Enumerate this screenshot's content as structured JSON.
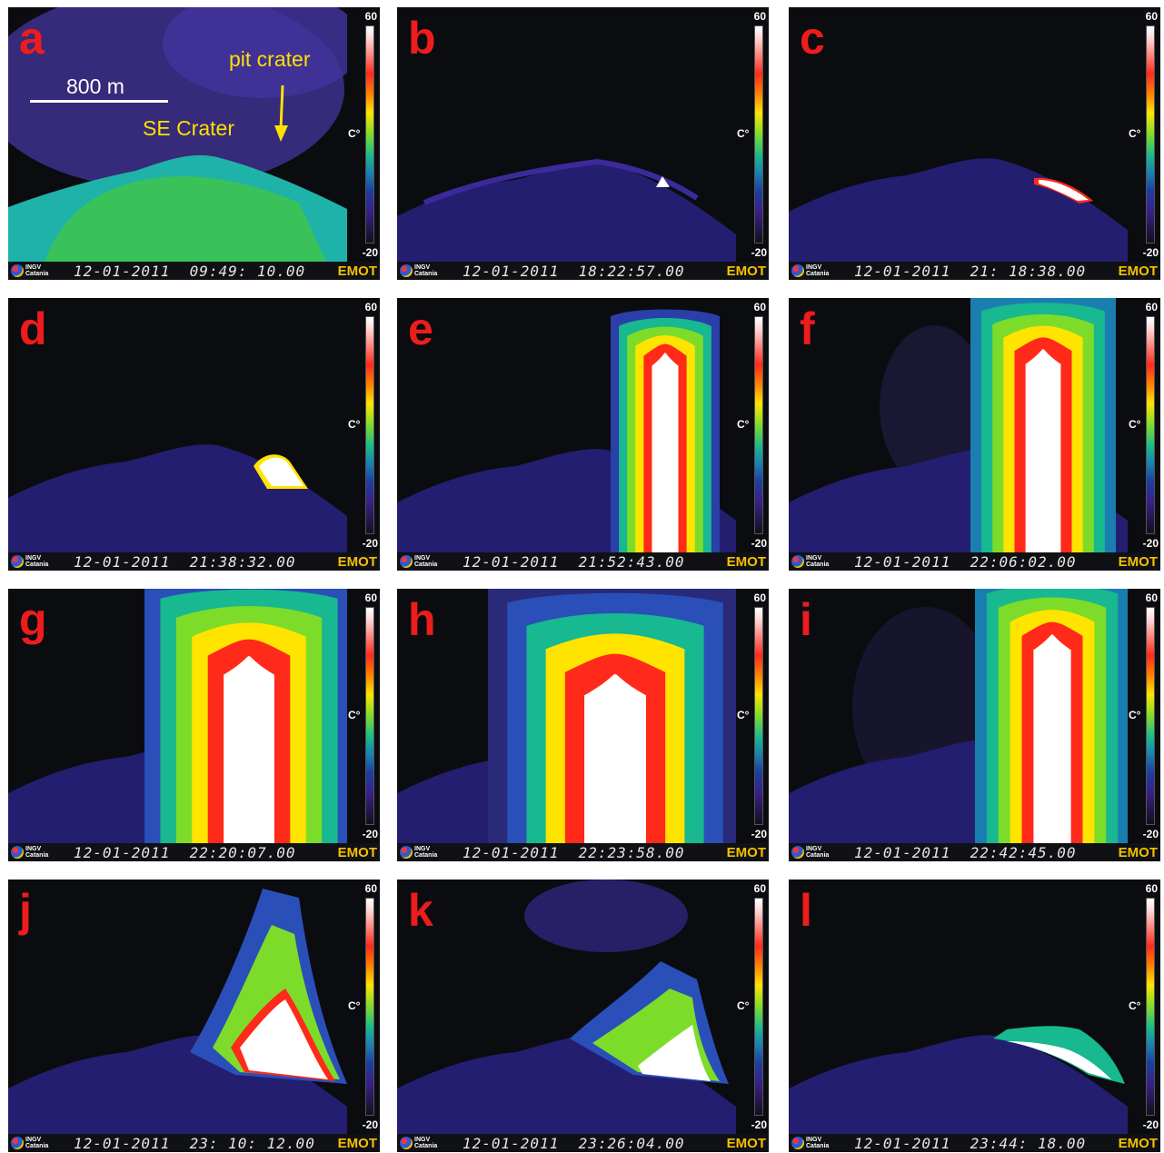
{
  "colorbar": {
    "max": "60",
    "min": "-20",
    "unit": "C°"
  },
  "footer": {
    "org_line1": "INGV",
    "org_line2": "Catania",
    "brand": "EMOT"
  },
  "panels": [
    {
      "letter": "a",
      "timestamp": "12-01-2011  09:49: 10.00"
    },
    {
      "letter": "b",
      "timestamp": "12-01-2011  18:22:57.00"
    },
    {
      "letter": "c",
      "timestamp": "12-01-2011  21: 18:38.00"
    },
    {
      "letter": "d",
      "timestamp": "12-01-2011  21:38:32.00"
    },
    {
      "letter": "e",
      "timestamp": "12-01-2011  21:52:43.00"
    },
    {
      "letter": "f",
      "timestamp": "12-01-2011  22:06:02.00"
    },
    {
      "letter": "g",
      "timestamp": "12-01-2011  22:20:07.00"
    },
    {
      "letter": "h",
      "timestamp": "12-01-2011  22:23:58.00"
    },
    {
      "letter": "i",
      "timestamp": "12-01-2011  22:42:45.00"
    },
    {
      "letter": "j",
      "timestamp": "12-01-2011  23: 10: 12.00"
    },
    {
      "letter": "k",
      "timestamp": "12-01-2011  23:26:04.00"
    },
    {
      "letter": "l",
      "timestamp": "12-01-2011  23:44: 18.00"
    }
  ],
  "annotations": {
    "scale_label": "800 m",
    "crater_label": "SE Crater",
    "pit_label": "pit crater"
  },
  "colors": {
    "letter": "#ee1c1c",
    "annotation": "#ffe000",
    "brand": "#f5c000"
  }
}
